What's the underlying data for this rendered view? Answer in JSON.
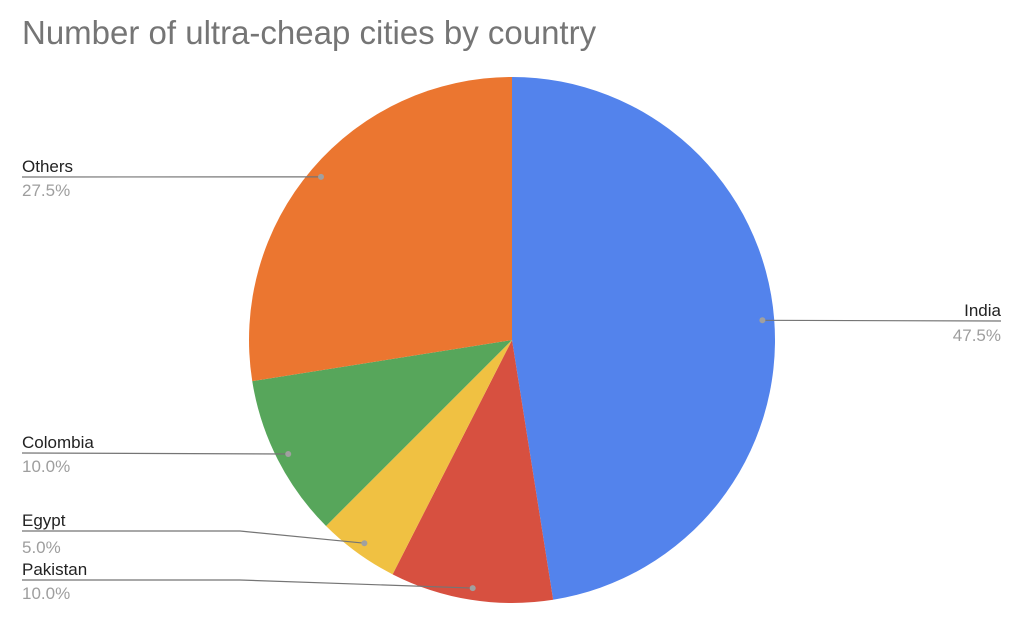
{
  "chart_data": {
    "type": "pie",
    "title": "Number of ultra-cheap cities by country",
    "slices": [
      {
        "label": "India",
        "percent_label": "47.5%",
        "value": 47.5,
        "color": "#5383ec"
      },
      {
        "label": "Pakistan",
        "percent_label": "10.0%",
        "value": 10.0,
        "color": "#d75040"
      },
      {
        "label": "Egypt",
        "percent_label": "5.0%",
        "value": 5.0,
        "color": "#f0c142"
      },
      {
        "label": "Colombia",
        "percent_label": "10.0%",
        "value": 10.0,
        "color": "#57a65b"
      },
      {
        "label": "Others",
        "percent_label": "27.5%",
        "value": 27.5,
        "color": "#eb7630"
      }
    ]
  }
}
